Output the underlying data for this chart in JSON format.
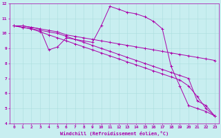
{
  "xlabel": "Windchill (Refroidissement éolien,°C)",
  "bg_color": "#c8eef0",
  "line_color": "#aa00aa",
  "xlim": [
    -0.5,
    23.5
  ],
  "ylim": [
    4,
    12
  ],
  "xticks": [
    0,
    1,
    2,
    3,
    4,
    5,
    6,
    7,
    8,
    9,
    10,
    11,
    12,
    13,
    14,
    15,
    16,
    17,
    18,
    19,
    20,
    21,
    22,
    23
  ],
  "yticks": [
    4,
    5,
    6,
    7,
    8,
    9,
    10,
    11,
    12
  ],
  "grid_color": "#aadddd",
  "series": [
    {
      "x": [
        0,
        1,
        2,
        3,
        4,
        5,
        6,
        7,
        8,
        9,
        10,
        11,
        12,
        13,
        14,
        15,
        16,
        17,
        18,
        19,
        20,
        21,
        22,
        23
      ],
      "y": [
        10.5,
        10.5,
        10.4,
        10.3,
        8.9,
        9.1,
        9.7,
        9.6,
        9.5,
        9.4,
        10.5,
        11.8,
        11.6,
        11.4,
        11.3,
        11.1,
        10.8,
        10.3,
        7.8,
        6.5,
        5.2,
        5.0,
        4.8,
        4.5
      ]
    },
    {
      "x": [
        0,
        1,
        2,
        3,
        4,
        5,
        6,
        7,
        8,
        9,
        10,
        11,
        12,
        13,
        14,
        15,
        16,
        17,
        18,
        19,
        20,
        21,
        22,
        23
      ],
      "y": [
        10.5,
        10.5,
        10.4,
        10.3,
        10.2,
        10.1,
        9.9,
        9.8,
        9.7,
        9.6,
        9.5,
        9.4,
        9.3,
        9.2,
        9.1,
        9.0,
        8.9,
        8.8,
        8.7,
        8.6,
        8.5,
        8.4,
        8.3,
        8.2
      ]
    },
    {
      "x": [
        0,
        1,
        2,
        3,
        4,
        5,
        6,
        7,
        8,
        9,
        10,
        11,
        12,
        13,
        14,
        15,
        16,
        17,
        18,
        19,
        20,
        21,
        22,
        23
      ],
      "y": [
        10.5,
        10.4,
        10.3,
        10.2,
        10.1,
        10.0,
        9.8,
        9.6,
        9.4,
        9.2,
        9.0,
        8.8,
        8.6,
        8.4,
        8.2,
        8.0,
        7.8,
        7.6,
        7.4,
        7.2,
        7.0,
        5.5,
        5.2,
        4.5
      ]
    },
    {
      "x": [
        0,
        1,
        2,
        3,
        4,
        5,
        6,
        7,
        8,
        9,
        10,
        11,
        12,
        13,
        14,
        15,
        16,
        17,
        18,
        19,
        20,
        21,
        22,
        23
      ],
      "y": [
        10.5,
        10.4,
        10.3,
        10.1,
        9.9,
        9.7,
        9.5,
        9.3,
        9.1,
        8.9,
        8.7,
        8.5,
        8.3,
        8.1,
        7.9,
        7.7,
        7.5,
        7.3,
        7.1,
        6.9,
        6.5,
        5.8,
        5.0,
        4.5
      ]
    }
  ]
}
